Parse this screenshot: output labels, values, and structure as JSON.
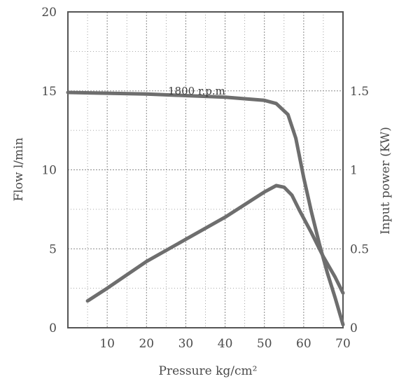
{
  "chart_data": {
    "type": "line",
    "annotation": "1800 r.p.m",
    "xlabel": "Pressure  kg/cm²",
    "ylabel_left": "Flow   l/min",
    "ylabel_right": "Input power (KW)",
    "xlim": [
      0,
      70
    ],
    "ylim_left": [
      0,
      20
    ],
    "ylim_right": [
      0,
      2
    ],
    "grid": true,
    "x_ticks": [
      10,
      20,
      30,
      40,
      50,
      60,
      70
    ],
    "x_tick_labels": [
      "10",
      "20",
      "30",
      "40",
      "50",
      "60",
      "70"
    ],
    "y_left_ticks": [
      0,
      5,
      10,
      15,
      20
    ],
    "y_left_tick_labels": [
      "0",
      "5",
      "10",
      "15",
      "20"
    ],
    "y_right_ticks": [
      0,
      0.5,
      1,
      1.5
    ],
    "y_right_tick_labels": [
      "0",
      "0.5",
      "1",
      "1.5"
    ],
    "series": [
      {
        "axis": "left",
        "color": "#6e6e6e",
        "x": [
          0,
          10,
          20,
          30,
          40,
          50,
          53,
          56,
          58,
          60,
          62,
          64,
          66,
          68,
          70
        ],
        "y": [
          14.9,
          14.85,
          14.8,
          14.7,
          14.6,
          14.4,
          14.2,
          13.5,
          12.0,
          9.5,
          7.3,
          5.3,
          3.5,
          1.9,
          0.2
        ]
      },
      {
        "axis": "right",
        "color": "#6e6e6e",
        "x": [
          5,
          10,
          20,
          30,
          40,
          50,
          53,
          55,
          57,
          59,
          62,
          65,
          68,
          70
        ],
        "y": [
          0.17,
          0.25,
          0.42,
          0.56,
          0.7,
          0.86,
          0.9,
          0.89,
          0.84,
          0.74,
          0.6,
          0.45,
          0.32,
          0.22
        ]
      }
    ]
  }
}
